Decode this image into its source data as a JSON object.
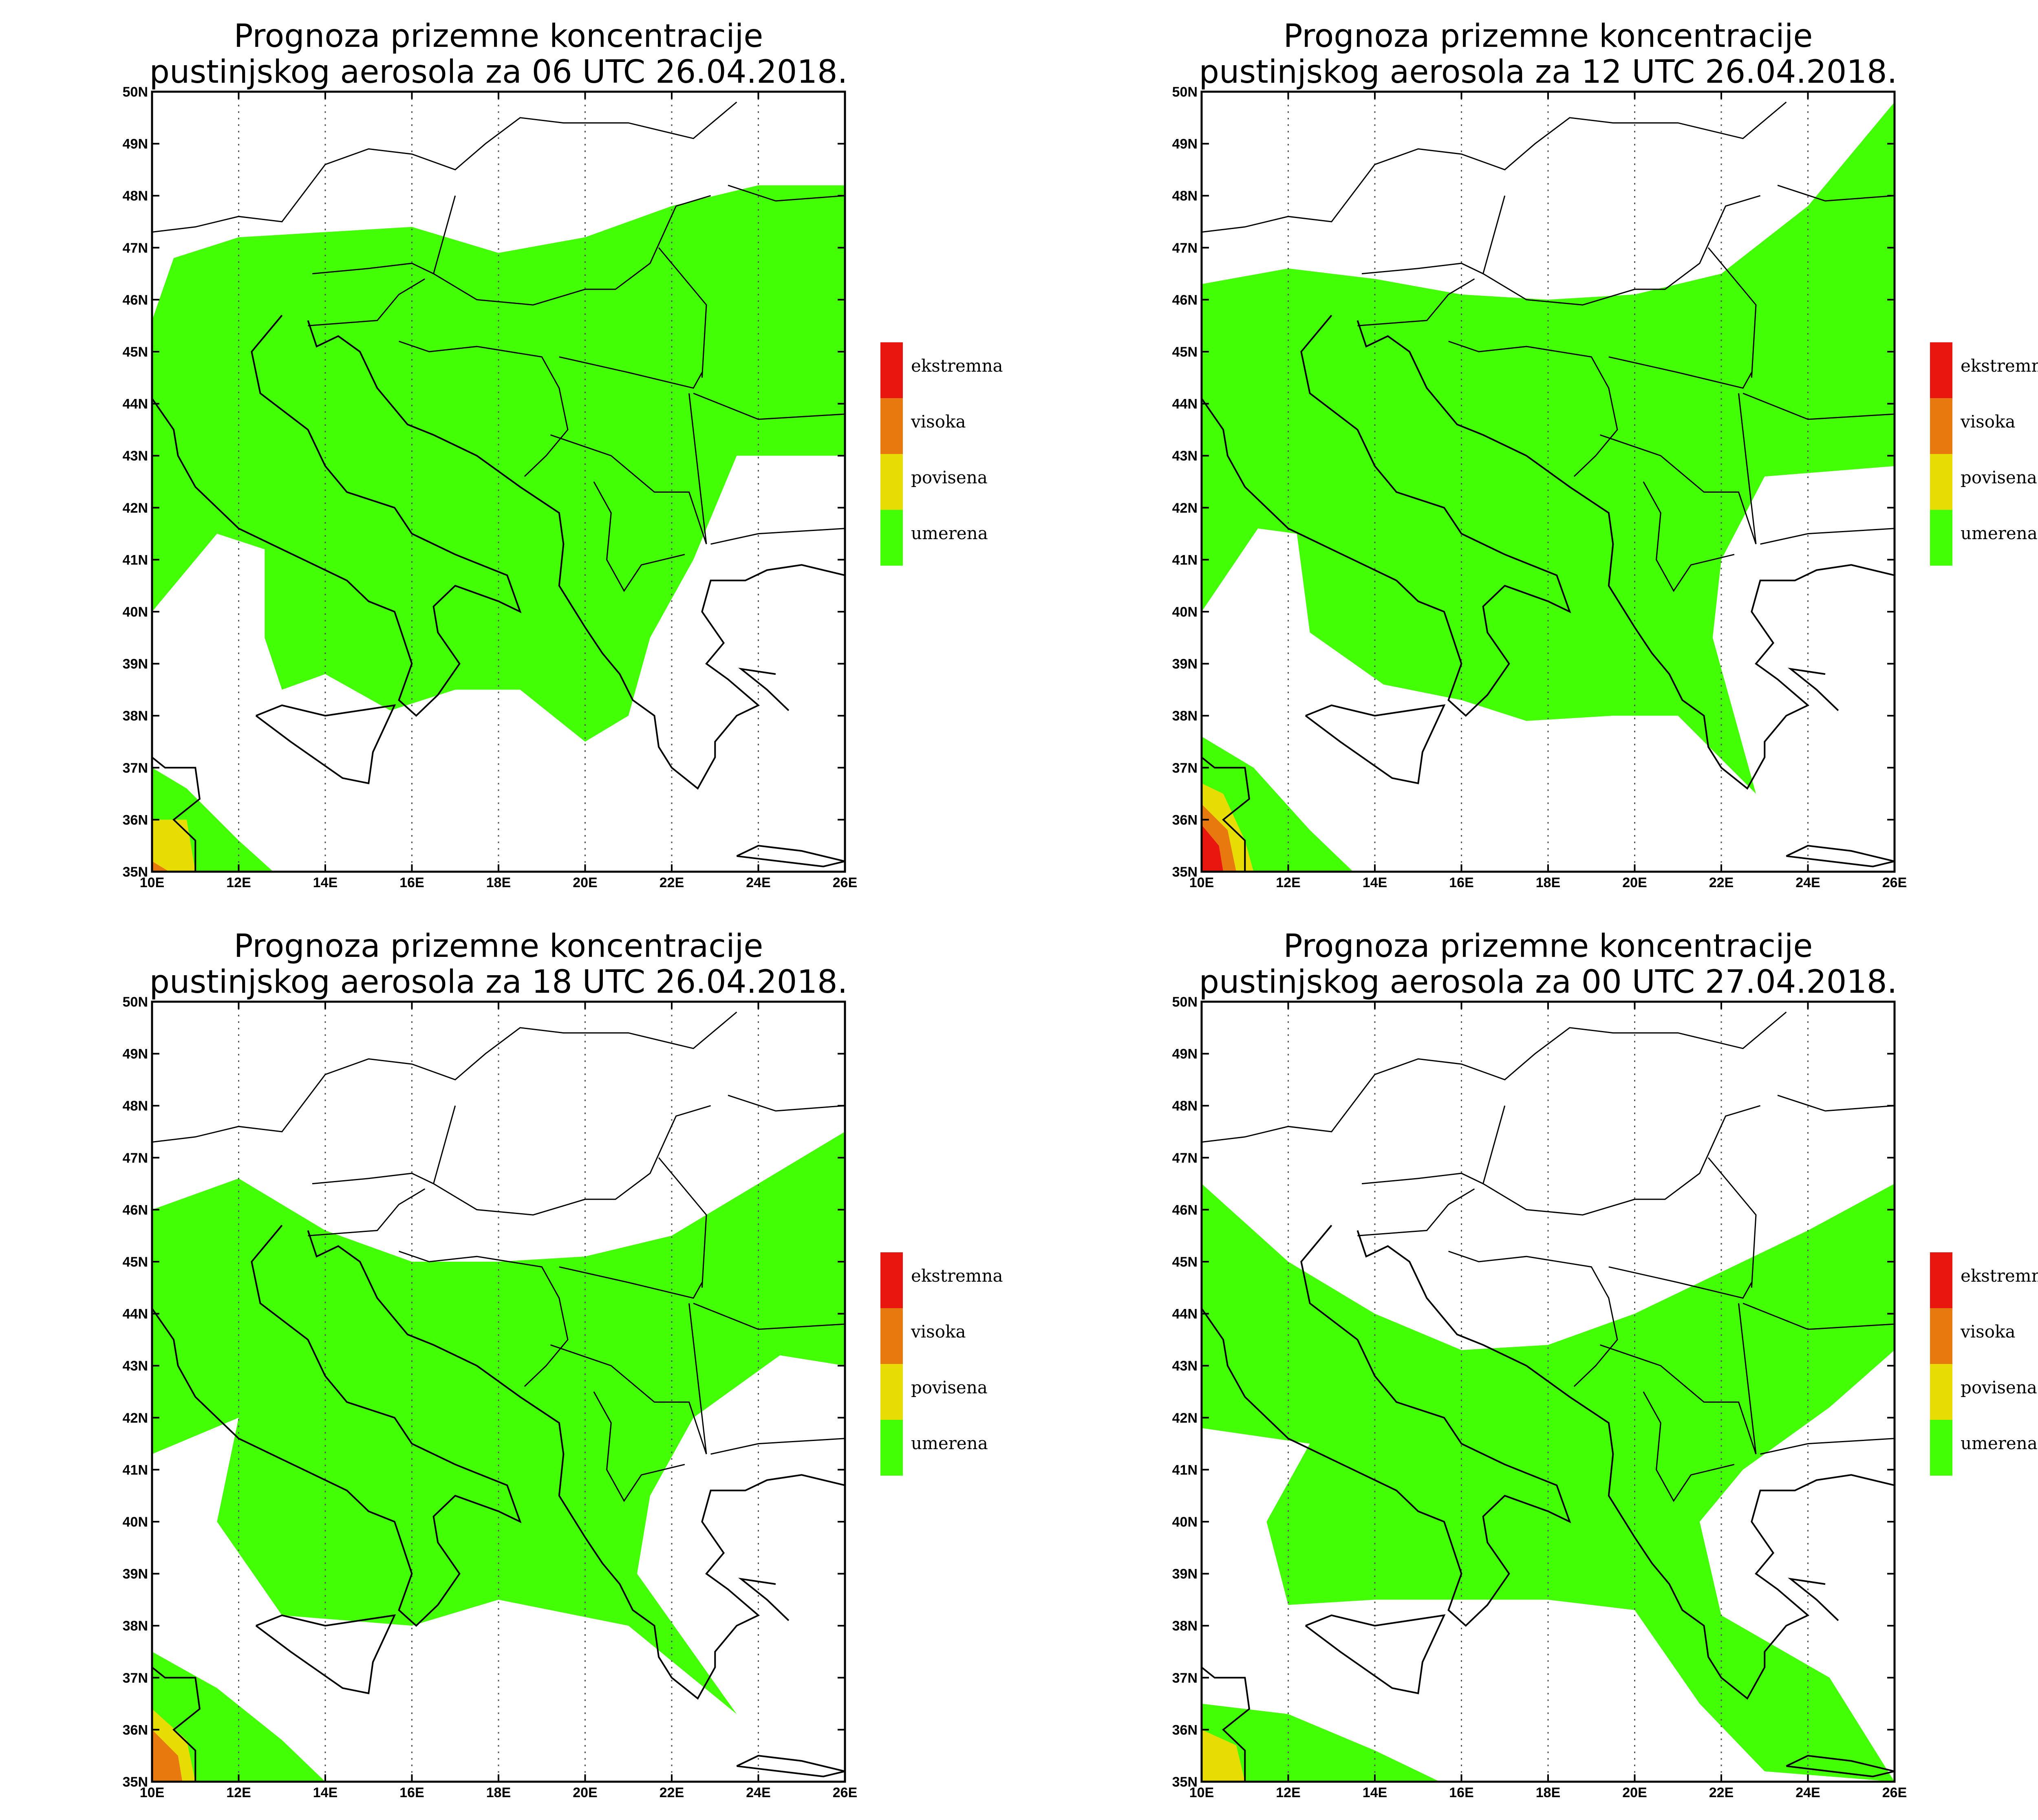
{
  "panels": [
    {
      "title_line1": "Prognoza prizemne koncentracije",
      "title_line2": "pustinjskog aerosola za 06 UTC 26.04.2018.",
      "valid_time": "06 UTC 26.04.2018",
      "umerena_region": [
        [
          10,
          45.6
        ],
        [
          10.5,
          46.8
        ],
        [
          12,
          47.2
        ],
        [
          14,
          47.3
        ],
        [
          16,
          47.4
        ],
        [
          18,
          46.9
        ],
        [
          20,
          47.2
        ],
        [
          22,
          47.8
        ],
        [
          24,
          48.2
        ],
        [
          26,
          48.2
        ],
        [
          26,
          43
        ],
        [
          23.5,
          43
        ],
        [
          22.5,
          41
        ],
        [
          21.5,
          39.5
        ],
        [
          21,
          38
        ],
        [
          20,
          37.5
        ],
        [
          18.5,
          38.5
        ],
        [
          17,
          38.5
        ],
        [
          15.5,
          38.1
        ],
        [
          14,
          38.8
        ],
        [
          13,
          38.5
        ],
        [
          12.6,
          39.5
        ],
        [
          12.6,
          41.2
        ],
        [
          11.5,
          41.5
        ],
        [
          10,
          40
        ]
      ],
      "povisena_region": [
        [
          10,
          36
        ],
        [
          10.8,
          36
        ],
        [
          11,
          35
        ],
        [
          10,
          35
        ]
      ],
      "visoka_region": [
        [
          10,
          35.2
        ],
        [
          10.4,
          35
        ],
        [
          10,
          35
        ]
      ],
      "ekstremna_region": [],
      "umerena_outer": [
        [
          10,
          37
        ],
        [
          10.8,
          36.6
        ],
        [
          12,
          35.6
        ],
        [
          12.8,
          35
        ],
        [
          10,
          35
        ]
      ]
    },
    {
      "title_line1": "Prognoza prizemne koncentracije",
      "title_line2": "pustinjskog aerosola za 12 UTC 26.04.2018.",
      "valid_time": "12 UTC 26.04.2018",
      "umerena_region": [
        [
          10,
          46.3
        ],
        [
          12,
          46.6
        ],
        [
          14,
          46.4
        ],
        [
          16,
          46.1
        ],
        [
          18,
          46
        ],
        [
          20,
          46.1
        ],
        [
          22,
          46.5
        ],
        [
          24,
          47.8
        ],
        [
          26,
          49.8
        ],
        [
          26,
          42.8
        ],
        [
          23,
          42.6
        ],
        [
          22,
          41
        ],
        [
          21.8,
          39.5
        ],
        [
          22.8,
          36.5
        ],
        [
          21,
          38
        ],
        [
          19.5,
          38
        ],
        [
          17.5,
          37.9
        ],
        [
          16,
          38.3
        ],
        [
          14.2,
          38.6
        ],
        [
          12.5,
          39.6
        ],
        [
          12.2,
          41.5
        ],
        [
          11.3,
          41.6
        ],
        [
          10,
          40
        ]
      ],
      "povisena_region": [
        [
          10,
          36.7
        ],
        [
          10.5,
          36.5
        ],
        [
          11,
          35.6
        ],
        [
          11.2,
          35
        ],
        [
          10,
          35
        ]
      ],
      "visoka_region": [
        [
          10,
          36.3
        ],
        [
          10.6,
          35.8
        ],
        [
          10.8,
          35
        ],
        [
          10,
          35
        ]
      ],
      "ekstremna_region": [
        [
          10,
          35.9
        ],
        [
          10.4,
          35.5
        ],
        [
          10.5,
          35
        ],
        [
          10,
          35
        ]
      ],
      "umerena_outer": [
        [
          10,
          37.6
        ],
        [
          11.2,
          37
        ],
        [
          12.5,
          35.8
        ],
        [
          13.5,
          35
        ],
        [
          10,
          35
        ]
      ]
    },
    {
      "title_line1": "Prognoza prizemne koncentracije",
      "title_line2": "pustinjskog aerosola za 18 UTC 26.04.2018.",
      "valid_time": "18 UTC 26.04.2018",
      "umerena_region": [
        [
          10,
          46
        ],
        [
          12,
          46.6
        ],
        [
          14,
          45.6
        ],
        [
          16,
          45
        ],
        [
          18,
          45
        ],
        [
          20,
          45.1
        ],
        [
          22,
          45.5
        ],
        [
          24,
          46.5
        ],
        [
          26,
          47.5
        ],
        [
          26,
          43
        ],
        [
          24.5,
          43.2
        ],
        [
          22.5,
          42
        ],
        [
          21.5,
          40.5
        ],
        [
          21.2,
          39
        ],
        [
          23.5,
          36.3
        ],
        [
          21,
          38
        ],
        [
          18,
          38.5
        ],
        [
          16,
          38
        ],
        [
          13,
          38.2
        ],
        [
          11.5,
          40
        ],
        [
          12,
          42
        ],
        [
          10,
          41.3
        ]
      ],
      "povisena_region": [
        [
          10,
          36.4
        ],
        [
          10.8,
          35.8
        ],
        [
          11,
          35
        ],
        [
          10,
          35
        ]
      ],
      "visoka_region": [
        [
          10,
          36
        ],
        [
          10.6,
          35.5
        ],
        [
          10.7,
          35
        ],
        [
          10,
          35
        ]
      ],
      "ekstremna_region": [],
      "umerena_outer": [
        [
          10,
          37.5
        ],
        [
          11.5,
          36.8
        ],
        [
          13,
          35.8
        ],
        [
          14,
          35
        ],
        [
          10,
          35
        ]
      ]
    },
    {
      "title_line1": "Prognoza prizemne koncentracije",
      "title_line2": "pustinjskog aerosola za 00 UTC 27.04.2018.",
      "valid_time": "00 UTC 27.04.2018",
      "umerena_region": [
        [
          10,
          46.5
        ],
        [
          12,
          45
        ],
        [
          14,
          44
        ],
        [
          16,
          43.3
        ],
        [
          18,
          43.4
        ],
        [
          20,
          44
        ],
        [
          22,
          44.8
        ],
        [
          24,
          45.6
        ],
        [
          26,
          46.5
        ],
        [
          26,
          43.3
        ],
        [
          24.5,
          42.2
        ],
        [
          22.5,
          41
        ],
        [
          21.5,
          40
        ],
        [
          22,
          38.2
        ],
        [
          24.5,
          37
        ],
        [
          26,
          35
        ],
        [
          23,
          35.2
        ],
        [
          21.5,
          36.5
        ],
        [
          20,
          38.3
        ],
        [
          18,
          38.5
        ],
        [
          16,
          38.5
        ],
        [
          14,
          38.5
        ],
        [
          12,
          38.4
        ],
        [
          11.5,
          40
        ],
        [
          12.5,
          41.5
        ],
        [
          10,
          41.8
        ]
      ],
      "povisena_region": [
        [
          10,
          36
        ],
        [
          10.8,
          35.7
        ],
        [
          11,
          35
        ],
        [
          10,
          35
        ]
      ],
      "visoka_region": [],
      "ekstremna_region": [],
      "umerena_outer": [
        [
          10,
          36.5
        ],
        [
          12,
          36.3
        ],
        [
          14,
          35.6
        ],
        [
          15.5,
          35
        ],
        [
          10,
          35
        ]
      ]
    }
  ],
  "axes": {
    "lon_ticks": [
      "10E",
      "12E",
      "14E",
      "16E",
      "18E",
      "20E",
      "22E",
      "24E",
      "26E"
    ],
    "lat_ticks": [
      "35N",
      "36N",
      "37N",
      "38N",
      "39N",
      "40N",
      "41N",
      "42N",
      "43N",
      "44N",
      "45N",
      "46N",
      "47N",
      "48N",
      "49N",
      "50N"
    ],
    "lon_range": [
      10,
      26
    ],
    "lat_range": [
      35,
      50
    ]
  },
  "legend": {
    "items": [
      {
        "label": "ekstremna",
        "color": "#e8160f"
      },
      {
        "label": "visoka",
        "color": "#e8790f"
      },
      {
        "label": "povisena",
        "color": "#e8dc05"
      },
      {
        "label": "umerena",
        "color": "#43ff05"
      }
    ]
  },
  "colors": {
    "umerena": "#43ff05",
    "povisena": "#e8dc05",
    "visoka": "#e8790f",
    "ekstremna": "#e8160f"
  }
}
